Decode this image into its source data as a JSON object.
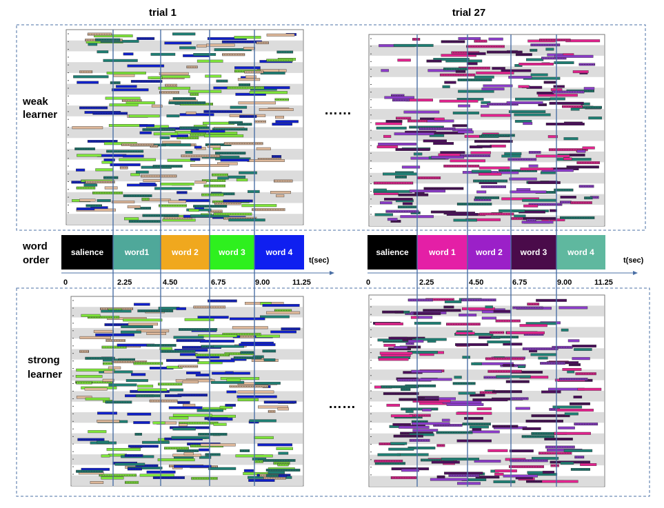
{
  "titles": {
    "left": "trial 1",
    "right": "trial 27"
  },
  "row_labels": {
    "weak": [
      "weak",
      "learner"
    ],
    "word_order": [
      "word",
      "order"
    ],
    "strong": [
      "strong",
      "learner"
    ]
  },
  "ellipsis": "……",
  "timeline_axis_label": "t(sec)",
  "timeline_ticks": [
    "0",
    "2.25",
    "4.50",
    "6.75",
    "9.00",
    "11.25"
  ],
  "timeline_left": [
    {
      "label": "salience",
      "color": "#000000"
    },
    {
      "label": "word1",
      "color": "#4fa89a"
    },
    {
      "label": "word 2",
      "color": "#f0a81e"
    },
    {
      "label": "word 3",
      "color": "#2ef01e"
    },
    {
      "label": "word 4",
      "color": "#0f1ff0"
    }
  ],
  "timeline_right": [
    {
      "label": "salience",
      "color": "#000000"
    },
    {
      "label": "word 1",
      "color": "#e41fa6"
    },
    {
      "label": "word 2",
      "color": "#9b20c8"
    },
    {
      "label": "word 3",
      "color": "#4a0b4a"
    },
    {
      "label": "word 4",
      "color": "#5fb89f"
    }
  ],
  "colors": {
    "left_bars": [
      "#1f7f74",
      "#deb89a",
      "#7fe63a",
      "#1020c8"
    ],
    "right_bars": [
      "#1f7f74",
      "#e2238e",
      "#8b3cc8",
      "#4a0f5a"
    ],
    "dashed": "#4a6fa5",
    "vline": "#4a6fa5"
  }
}
